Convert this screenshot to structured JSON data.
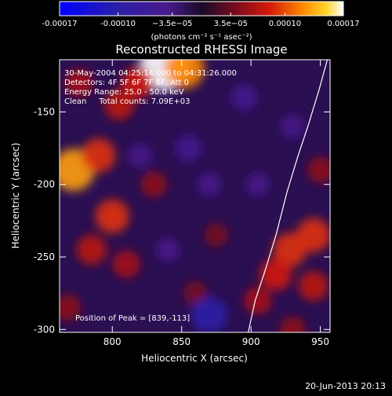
{
  "chart_data": {
    "type": "heatmap",
    "title": "Reconstructed RHESSI Image",
    "xlabel": "Heliocentric X (arcsec)",
    "ylabel": "Heliocentric Y (arcsec)",
    "xlim": [
      762,
      957
    ],
    "ylim": [
      -302,
      -114
    ],
    "xticks": [
      800,
      850,
      900,
      950
    ],
    "yticks": [
      -150,
      -200,
      -250,
      -300
    ],
    "colorbar": {
      "min": -0.00017,
      "max": 0.00017,
      "tick_values": [
        -0.00017,
        -0.0001,
        -3.5e-05,
        3.5e-05,
        0.0001,
        0.00017
      ],
      "tick_labels": [
        "-0.00017",
        "-0.00010",
        "−3.5e−05",
        "3.5e−05",
        "0.00010",
        "0.00017"
      ],
      "units_label": "(photons cm⁻² s⁻¹ asec⁻²)"
    },
    "annotations": [
      "30-May-2004 04:25:14.000 to 04:31:26.000",
      "Detectors: 4F 5F 6F 7F 8F, Att 0",
      "Energy Range: 25.0 - 50.0 keV",
      "Clean     Total counts: 7.09E+03"
    ],
    "peak_label": "Position of Peak = [839,-113]",
    "peak": {
      "x": 839,
      "y": -113
    },
    "limb_curve": [
      [
        898,
        -302
      ],
      [
        903,
        -280
      ],
      [
        910,
        -260
      ],
      [
        918,
        -235
      ],
      [
        926,
        -205
      ],
      [
        934,
        -180
      ],
      [
        941,
        -160
      ],
      [
        949,
        -135
      ],
      [
        955,
        -114
      ]
    ],
    "hot_spots": [
      {
        "x": 838,
        "y": -118,
        "v": 0.00017
      },
      {
        "x": 852,
        "y": -120,
        "v": 0.00012
      },
      {
        "x": 818,
        "y": -130,
        "v": 8e-05
      },
      {
        "x": 805,
        "y": -145,
        "v": 7e-05
      },
      {
        "x": 776,
        "y": -130,
        "v": 6e-05
      },
      {
        "x": 772,
        "y": -190,
        "v": 0.00013
      },
      {
        "x": 790,
        "y": -180,
        "v": 9e-05
      },
      {
        "x": 800,
        "y": -222,
        "v": 9e-05
      },
      {
        "x": 785,
        "y": -245,
        "v": 7e-05
      },
      {
        "x": 810,
        "y": -255,
        "v": 6e-05
      },
      {
        "x": 768,
        "y": -285,
        "v": 5e-05
      },
      {
        "x": 830,
        "y": -200,
        "v": 5e-05
      },
      {
        "x": 945,
        "y": -235,
        "v": 9e-05
      },
      {
        "x": 928,
        "y": -245,
        "v": 9e-05
      },
      {
        "x": 918,
        "y": -262,
        "v": 8e-05
      },
      {
        "x": 945,
        "y": -270,
        "v": 7e-05
      },
      {
        "x": 905,
        "y": -280,
        "v": 6e-05
      },
      {
        "x": 950,
        "y": -190,
        "v": 5e-05
      },
      {
        "x": 930,
        "y": -300,
        "v": 5e-05
      },
      {
        "x": 875,
        "y": -235,
        "v": 4e-05
      },
      {
        "x": 860,
        "y": -275,
        "v": 4e-05
      },
      {
        "x": 870,
        "y": -290,
        "v": -0.0001
      },
      {
        "x": 895,
        "y": -140,
        "v": -5e-05
      },
      {
        "x": 855,
        "y": -175,
        "v": -5e-05
      },
      {
        "x": 870,
        "y": -200,
        "v": -4e-05
      },
      {
        "x": 905,
        "y": -200,
        "v": -4e-05
      },
      {
        "x": 840,
        "y": -245,
        "v": -4e-05
      },
      {
        "x": 820,
        "y": -180,
        "v": -4e-05
      },
      {
        "x": 930,
        "y": -160,
        "v": -4e-05
      }
    ]
  },
  "footer": {
    "date": "20-Jun-2013 20:13"
  }
}
